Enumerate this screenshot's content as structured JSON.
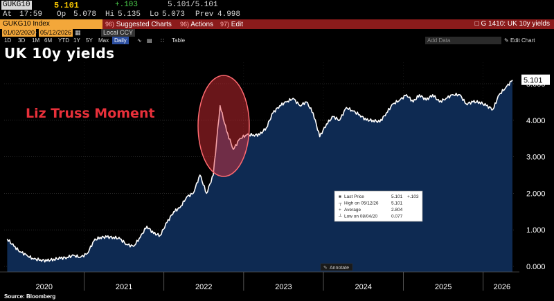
{
  "quote": {
    "ticker": "GUKG10",
    "last": "5.101",
    "change": "+.103",
    "bid_ask": "5.101/5.101",
    "time_label": "At",
    "time": "17:59",
    "open_label": "Op",
    "open": "5.078",
    "high_label": "Hi",
    "high": "5.135",
    "low_label": "Lo",
    "low": "5.073",
    "prev_label": "Prev",
    "prev": "4.998"
  },
  "command_bar": {
    "security": "GUKG10 Index",
    "menus": [
      {
        "num": "96)",
        "label": "Suggested Charts"
      },
      {
        "num": "96)",
        "label": "Actions"
      },
      {
        "num": "97)",
        "label": "Edit"
      }
    ],
    "right_title": "G 1410: UK 10y yields"
  },
  "date_range": {
    "start": "01/02/2020",
    "end": "05/12/2026",
    "currency": "Local CCY"
  },
  "range_toolbar": {
    "ranges": [
      "1D",
      "3D",
      "1M",
      "6M",
      "YTD",
      "1Y",
      "5Y",
      "Max"
    ],
    "frequency": "Daily",
    "table_label": "Table",
    "add_data_placeholder": "Add Data",
    "edit_chart": "Edit Chart"
  },
  "annotation_text": "Liz Truss Moment",
  "annotate_button": "Annotate",
  "source": "Source: Bloomberg",
  "colors": {
    "background": "#000000",
    "area_fill": "#0e2a52",
    "line": "#ffffff",
    "highlight": "#e8303a",
    "header_orange": "#f3a73a",
    "header_red": "#8b1b1b"
  },
  "chart_data": {
    "type": "area",
    "title": "UK 10y yields",
    "xlabel": "",
    "ylabel": "",
    "x_ticks": [
      "2020",
      "2021",
      "2022",
      "2023",
      "2024",
      "2025",
      "2026"
    ],
    "y_ticks": [
      "0.000",
      "1.000",
      "2.000",
      "3.000",
      "4.000",
      "5.000"
    ],
    "ylim": [
      0,
      5.5
    ],
    "last_value_label": "5.101",
    "grid": true,
    "series": [
      {
        "x": [
          "2020-01",
          "2020-02",
          "2020-03",
          "2020-04",
          "2020-05",
          "2020-06",
          "2020-07",
          "2020-08",
          "2020-09",
          "2020-10",
          "2020-11",
          "2020-12",
          "2021-01",
          "2021-02",
          "2021-03",
          "2021-04",
          "2021-05",
          "2021-06",
          "2021-07",
          "2021-08",
          "2021-09",
          "2021-10",
          "2021-11",
          "2021-12",
          "2022-01",
          "2022-02",
          "2022-03",
          "2022-04",
          "2022-05",
          "2022-06",
          "2022-07",
          "2022-08",
          "2022-09",
          "2022-10",
          "2022-11",
          "2022-12",
          "2023-01",
          "2023-02",
          "2023-03",
          "2023-04",
          "2023-05",
          "2023-06",
          "2023-07",
          "2023-08",
          "2023-09",
          "2023-10",
          "2023-11",
          "2023-12",
          "2024-01",
          "2024-02",
          "2024-03",
          "2024-04",
          "2024-05",
          "2024-06",
          "2024-07",
          "2024-08",
          "2024-09",
          "2024-10",
          "2024-11",
          "2024-12",
          "2025-01",
          "2025-02",
          "2025-03",
          "2025-04",
          "2025-05",
          "2025-06",
          "2025-07",
          "2025-08",
          "2025-09",
          "2025-10",
          "2025-11",
          "2025-12",
          "2026-01",
          "2026-02",
          "2026-03",
          "2026-04",
          "2026-05"
        ],
        "values": [
          0.75,
          0.55,
          0.4,
          0.3,
          0.2,
          0.18,
          0.15,
          0.2,
          0.22,
          0.25,
          0.3,
          0.25,
          0.35,
          0.7,
          0.8,
          0.8,
          0.8,
          0.75,
          0.6,
          0.55,
          0.8,
          1.1,
          0.9,
          0.85,
          1.2,
          1.5,
          1.6,
          1.9,
          2.0,
          2.5,
          2.0,
          2.5,
          4.4,
          3.7,
          3.2,
          3.5,
          3.6,
          3.6,
          3.6,
          3.8,
          4.2,
          4.4,
          4.5,
          4.6,
          4.4,
          4.5,
          4.2,
          3.55,
          3.9,
          4.1,
          4.0,
          4.35,
          4.25,
          4.15,
          4.0,
          4.0,
          3.95,
          4.2,
          4.45,
          4.55,
          4.7,
          4.5,
          4.7,
          4.55,
          4.7,
          4.5,
          4.6,
          4.7,
          4.7,
          4.45,
          4.5,
          4.5,
          4.4,
          4.3,
          4.7,
          4.9,
          5.1
        ]
      }
    ],
    "legend": {
      "placement": "center",
      "rows": [
        {
          "label": "Last Price",
          "value": "5.101",
          "extra": "+.103"
        },
        {
          "label": "High on 05/12/26",
          "value": "5.101",
          "extra": ""
        },
        {
          "label": "Average",
          "value": "2.804",
          "extra": ""
        },
        {
          "label": "Low on 08/04/20",
          "value": "0.077",
          "extra": ""
        }
      ]
    }
  }
}
